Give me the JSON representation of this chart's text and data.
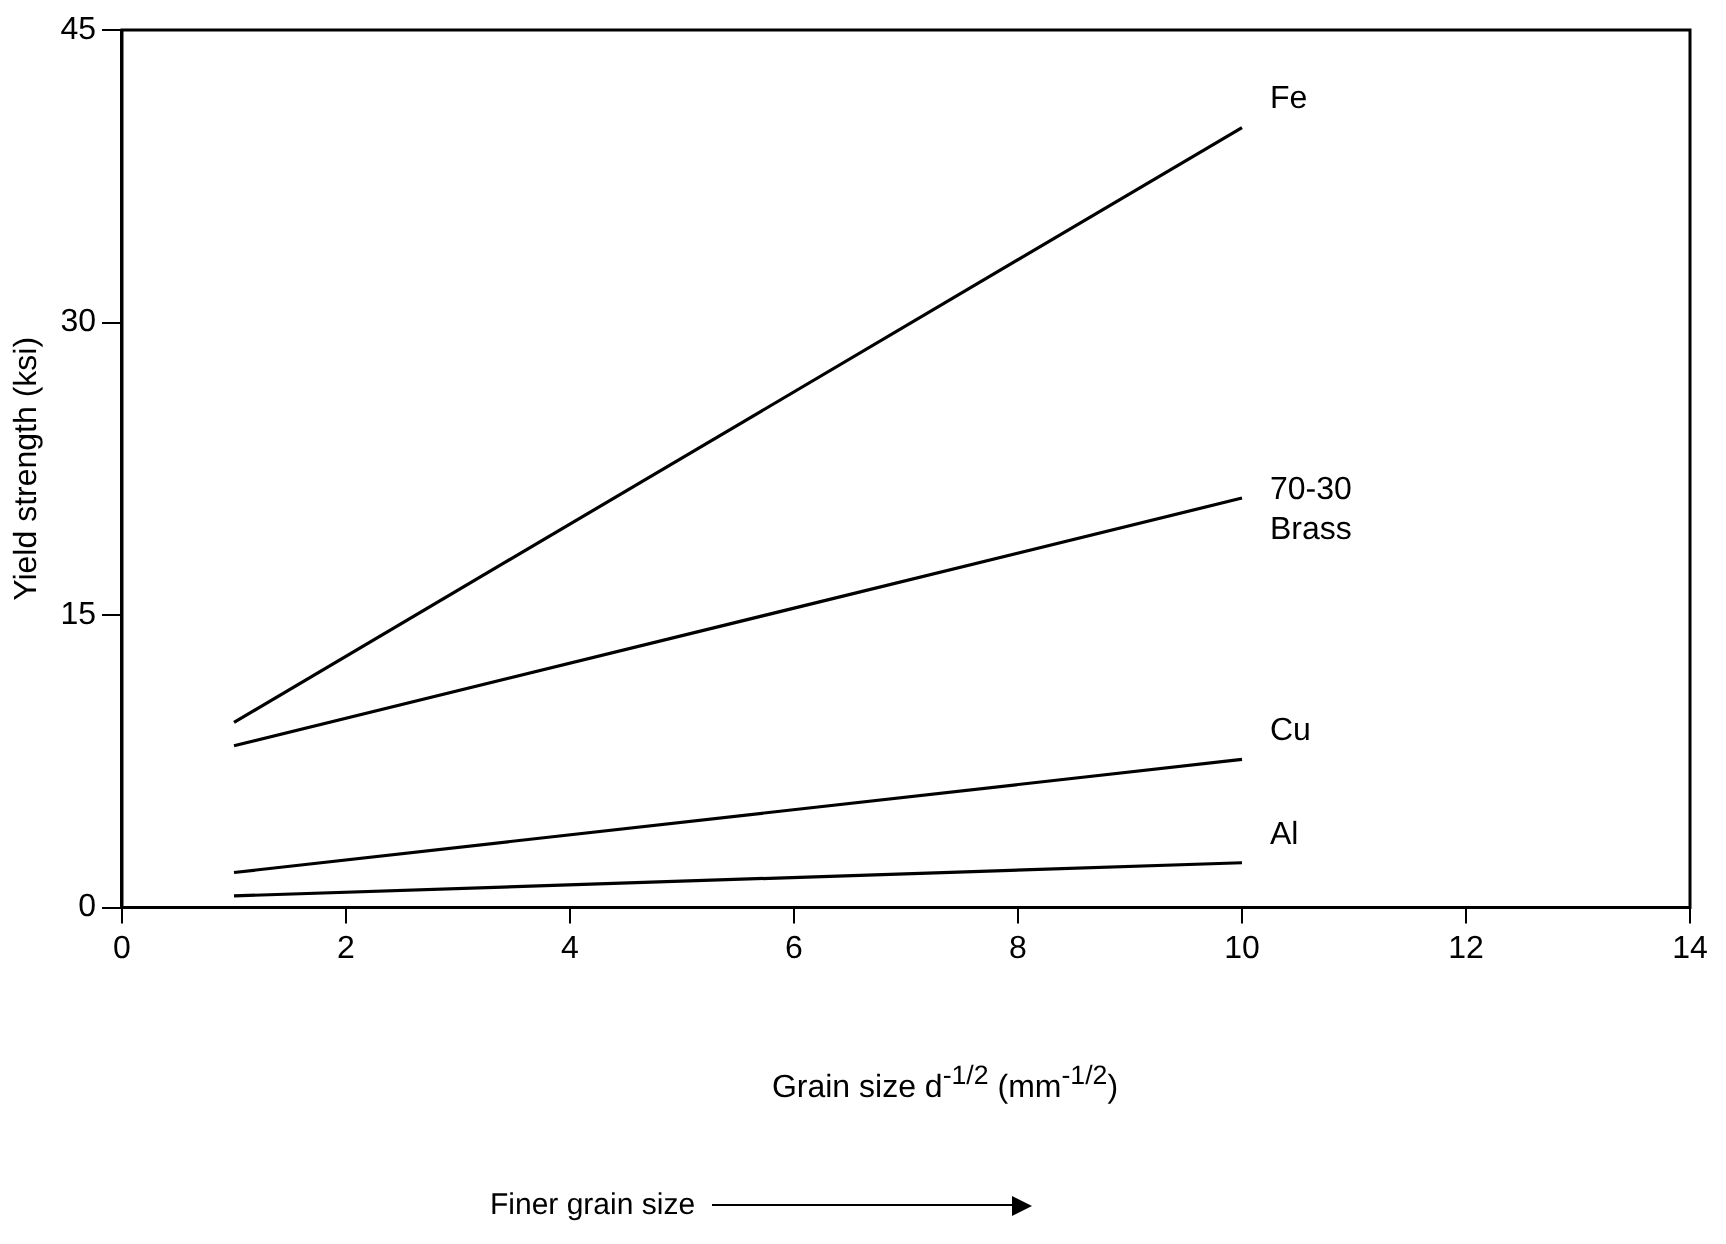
{
  "chart_data": {
    "type": "line",
    "xlabel": "Grain size d$^{-1/2}$ (mm$^{-1/2}$)",
    "ylabel": "Yield strength (ksi)",
    "x": [
      1,
      10
    ],
    "series": [
      {
        "name": "Fe",
        "color": "#000000",
        "values": [
          9.5,
          40
        ]
      },
      {
        "name": "70-30 Brass",
        "color": "#000000",
        "values": [
          8.3,
          21
        ]
      },
      {
        "name": "Cu",
        "color": "#000000",
        "values": [
          1.8,
          7.6
        ]
      },
      {
        "name": "Al",
        "color": "#000000",
        "values": [
          0.6,
          2.3
        ]
      }
    ],
    "xlim": [
      0,
      14
    ],
    "xticks": [
      0,
      2,
      4,
      6,
      8,
      10,
      12,
      14
    ],
    "ylim": [
      0,
      45
    ],
    "yticks": [
      0,
      15,
      30,
      45
    ],
    "marker": "none",
    "line_style": "solid",
    "legend": false,
    "annotations": [
      "Finer grain size"
    ]
  }
}
